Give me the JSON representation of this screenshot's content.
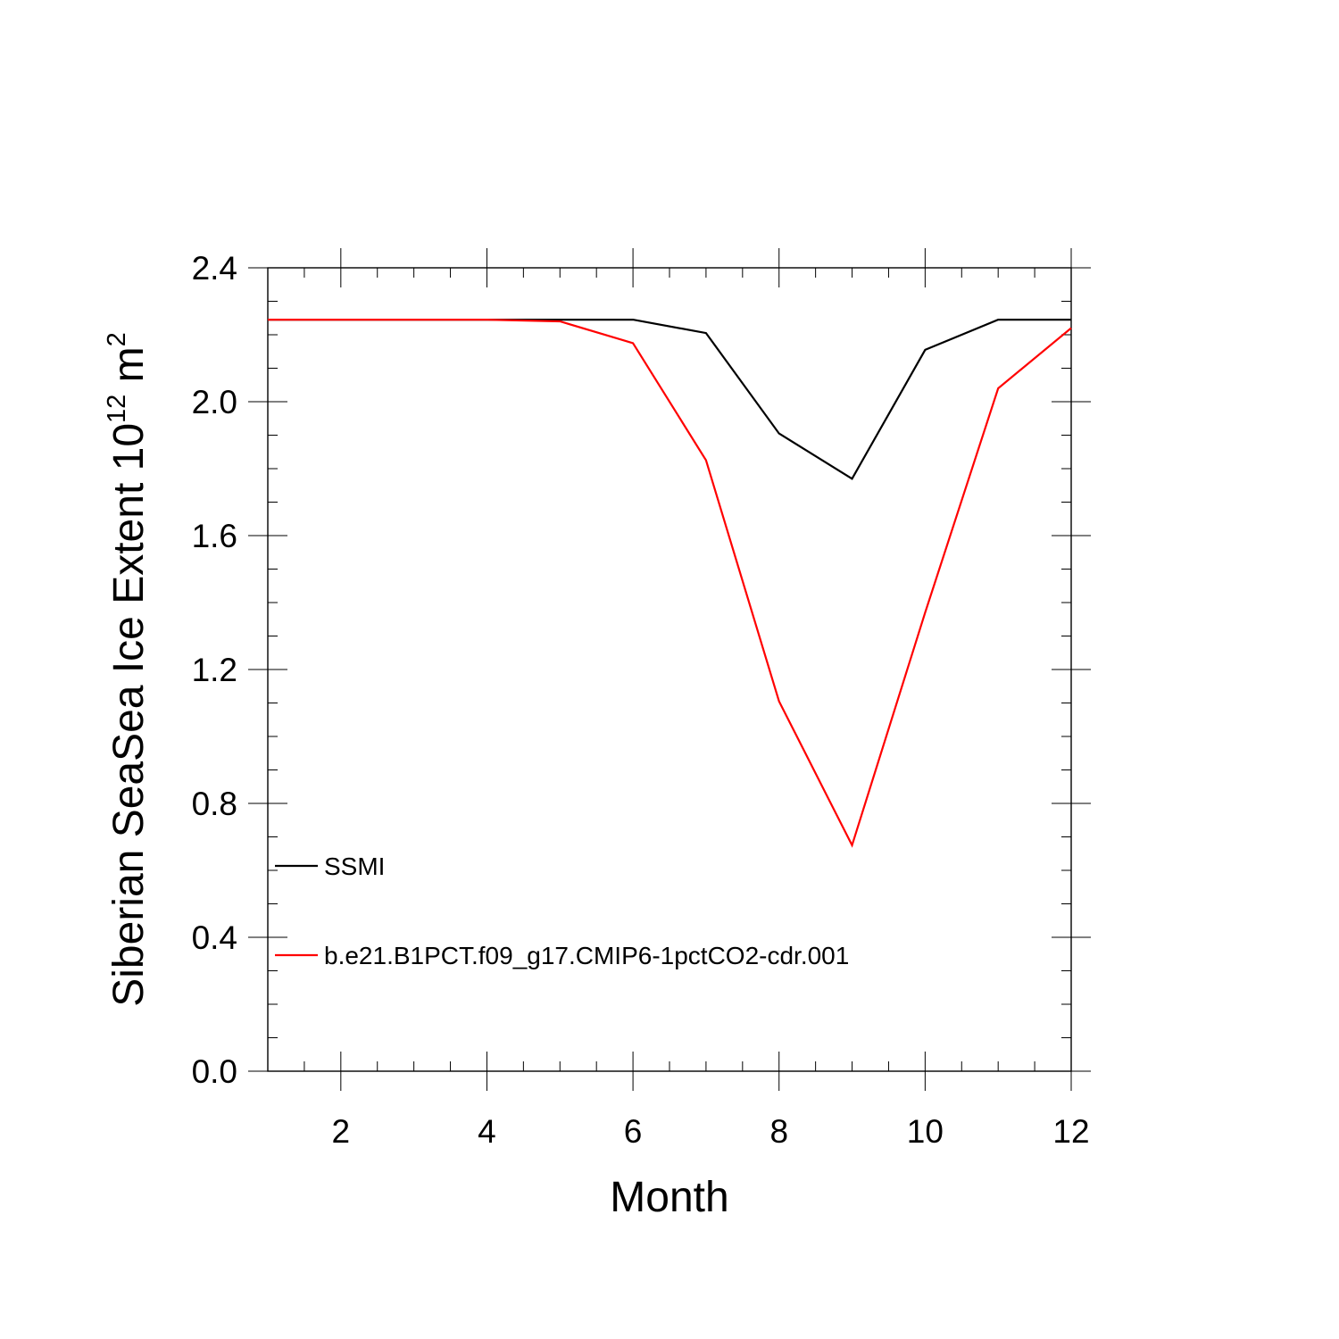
{
  "chart_data": {
    "type": "line",
    "xlabel": "Month",
    "ylabel": {
      "prefix": "Siberian SeaSea Ice Extent 10",
      "exponent": "12",
      "unit": " m",
      "unit_exponent": "2"
    },
    "xlim": [
      1,
      12
    ],
    "ylim": [
      0.0,
      2.4
    ],
    "x_ticks": [
      2,
      4,
      6,
      8,
      10,
      12
    ],
    "y_ticks": [
      0.0,
      0.4,
      0.8,
      1.2,
      1.6,
      2.0,
      2.4
    ],
    "y_tick_labels": [
      "0.0",
      "0.4",
      "0.8",
      "1.2",
      "1.6",
      "2.0",
      "2.4"
    ],
    "grid": false,
    "legend_position": "lower-left",
    "x": [
      1,
      2,
      3,
      4,
      5,
      6,
      7,
      8,
      9,
      10,
      11,
      12
    ],
    "series": [
      {
        "name": "SSMI",
        "color": "#000000",
        "values": [
          2.245,
          2.245,
          2.245,
          2.245,
          2.245,
          2.245,
          2.205,
          1.905,
          1.77,
          2.155,
          2.245,
          2.245
        ]
      },
      {
        "name": "b.e21.B1PCT.f09_g17.CMIP6-1pctCO2-cdr.001",
        "color": "#ff0000",
        "values": [
          2.245,
          2.245,
          2.245,
          2.245,
          2.24,
          2.175,
          1.825,
          1.105,
          0.675,
          1.37,
          2.04,
          2.22
        ]
      }
    ]
  }
}
